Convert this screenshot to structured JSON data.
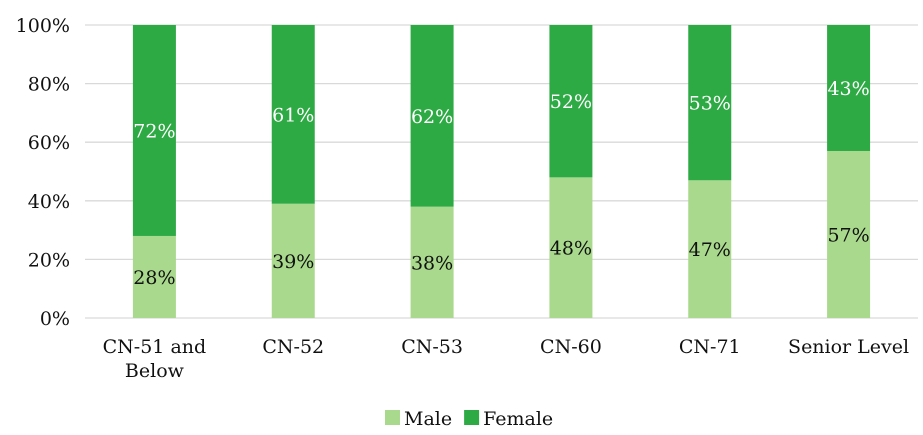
{
  "chart_data": {
    "type": "bar",
    "stacked": true,
    "percent": true,
    "categories": [
      [
        "CN-51 and",
        "Below"
      ],
      [
        "CN-52"
      ],
      [
        "CN-53"
      ],
      [
        "CN-60"
      ],
      [
        "CN-71"
      ],
      [
        "Senior Level"
      ]
    ],
    "series": [
      {
        "name": "Male",
        "values": [
          28,
          39,
          38,
          48,
          47,
          57
        ],
        "labels": [
          "28%",
          "39%",
          "38%",
          "48%",
          "47%",
          "57%"
        ],
        "color": "#a9d98c",
        "label_color": "#111111"
      },
      {
        "name": "Female",
        "values": [
          72,
          61,
          62,
          52,
          53,
          43
        ],
        "labels": [
          "72%",
          "61%",
          "62%",
          "52%",
          "53%",
          "43%"
        ],
        "color": "#2eaa45",
        "label_color": "#ffffff"
      }
    ],
    "y_ticks": [
      "0%",
      "20%",
      "40%",
      "60%",
      "80%",
      "100%"
    ],
    "ylim": [
      0,
      100
    ],
    "grid": true,
    "legend": "bottom"
  }
}
